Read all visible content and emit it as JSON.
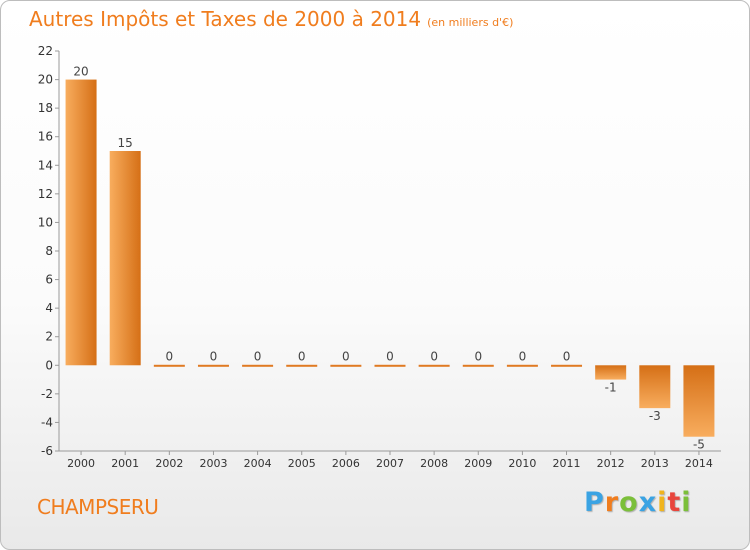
{
  "header": {
    "title": "Autres Impôts et Taxes de 2000 à 2014",
    "unit": "(en milliers d'€)"
  },
  "footer": {
    "commune": "CHAMPSERU",
    "brand_letters": [
      "P",
      "r",
      "o",
      "x",
      "i",
      "t",
      "i"
    ],
    "brand_colors": [
      "#3aa3e3",
      "#f07d1e",
      "#7bbf3a",
      "#3aa3e3",
      "#f0b41e",
      "#e8453c",
      "#7bbf3a"
    ]
  },
  "chart_data": {
    "type": "bar",
    "title": "Autres Impôts et Taxes de 2000 à 2014",
    "subtitle": "(en milliers d'€)",
    "categories": [
      "2000",
      "2001",
      "2002",
      "2003",
      "2004",
      "2005",
      "2006",
      "2007",
      "2008",
      "2009",
      "2010",
      "2011",
      "2012",
      "2013",
      "2014"
    ],
    "values": [
      20,
      15,
      0,
      0,
      0,
      0,
      0,
      0,
      0,
      0,
      0,
      0,
      -1,
      -3,
      -5
    ],
    "data_labels": [
      "20",
      "15",
      "0",
      "0",
      "0",
      "0",
      "0",
      "0",
      "0",
      "0",
      "0",
      "0",
      "-1",
      "-3",
      "-5"
    ],
    "ylim": [
      -6,
      22
    ],
    "yticks": [
      -6,
      -4,
      -2,
      0,
      2,
      4,
      6,
      8,
      10,
      12,
      14,
      16,
      18,
      20,
      22
    ],
    "grid": false,
    "bar_color": "#f07d1e"
  }
}
